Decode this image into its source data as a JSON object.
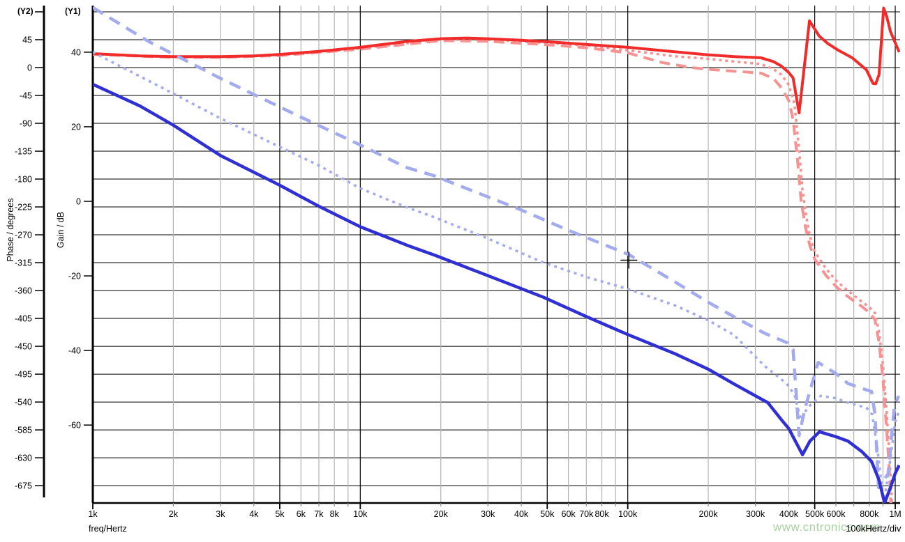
{
  "page": {
    "watermark": "www.cntronics.com",
    "scale_note": "100kHertz/div"
  },
  "chart_data": {
    "type": "line",
    "title": "",
    "x_axis": {
      "label": "freq/Hertz",
      "scale": "log",
      "xlim": [
        1000,
        1040000
      ],
      "ticks": [
        {
          "f": 1000,
          "label": "1k",
          "major": true
        },
        {
          "f": 2000,
          "label": "2k",
          "major": false
        },
        {
          "f": 3000,
          "label": "3k",
          "major": false
        },
        {
          "f": 4000,
          "label": "4k",
          "major": false
        },
        {
          "f": 5000,
          "label": "5k",
          "major": true
        },
        {
          "f": 6000,
          "label": "6k",
          "major": false
        },
        {
          "f": 7000,
          "label": "7k",
          "major": false
        },
        {
          "f": 8000,
          "label": "8k",
          "major": false
        },
        {
          "f": 9000,
          "label": "",
          "major": false
        },
        {
          "f": 10000,
          "label": "10k",
          "major": true
        },
        {
          "f": 20000,
          "label": "20k",
          "major": false
        },
        {
          "f": 30000,
          "label": "30k",
          "major": false
        },
        {
          "f": 40000,
          "label": "40k",
          "major": false
        },
        {
          "f": 50000,
          "label": "50k",
          "major": true
        },
        {
          "f": 60000,
          "label": "60k",
          "major": false
        },
        {
          "f": 70000,
          "label": "70k",
          "major": false
        },
        {
          "f": 80000,
          "label": "80k",
          "major": false
        },
        {
          "f": 90000,
          "label": "",
          "major": false
        },
        {
          "f": 100000,
          "label": "100k",
          "major": true
        },
        {
          "f": 200000,
          "label": "200k",
          "major": false
        },
        {
          "f": 300000,
          "label": "300k",
          "major": false
        },
        {
          "f": 400000,
          "label": "400k",
          "major": false
        },
        {
          "f": 500000,
          "label": "500k",
          "major": true
        },
        {
          "f": 600000,
          "label": "600k",
          "major": false
        },
        {
          "f": 700000,
          "label": "",
          "major": false
        },
        {
          "f": 800000,
          "label": "800k",
          "major": false
        },
        {
          "f": 900000,
          "label": "",
          "major": false
        },
        {
          "f": 1000000,
          "label": "1M",
          "major": true
        }
      ]
    },
    "y1_axis": {
      "name": "(Y1)",
      "label": "Gain / dB",
      "ylim": [
        -80.9,
        52.5
      ],
      "ticks": [
        {
          "v": 40,
          "label": "40"
        },
        {
          "v": 20,
          "label": "20"
        },
        {
          "v": 0,
          "label": "0"
        },
        {
          "v": -20,
          "label": "-20"
        },
        {
          "v": -40,
          "label": "-40"
        },
        {
          "v": -60,
          "label": "-60"
        }
      ]
    },
    "y2_axis": {
      "name": "(Y2)",
      "label": "Phase / degrees",
      "ylim": [
        -703,
        100.1
      ],
      "ticks": [
        {
          "v": 90,
          "label": ""
        },
        {
          "v": 45,
          "label": "45"
        },
        {
          "v": 0,
          "label": "0"
        },
        {
          "v": -45,
          "label": "-45"
        },
        {
          "v": -90,
          "label": "-90"
        },
        {
          "v": -135,
          "label": "-135"
        },
        {
          "v": -180,
          "label": "-180"
        },
        {
          "v": -225,
          "label": "-225"
        },
        {
          "v": -270,
          "label": "-270"
        },
        {
          "v": -315,
          "label": "-315"
        },
        {
          "v": -360,
          "label": "-360"
        },
        {
          "v": -405,
          "label": "-405"
        },
        {
          "v": -450,
          "label": "-450"
        },
        {
          "v": -495,
          "label": "-495"
        },
        {
          "v": -540,
          "label": "-540"
        },
        {
          "v": -585,
          "label": "-585"
        },
        {
          "v": -630,
          "label": "-630"
        },
        {
          "v": -675,
          "label": "-675"
        }
      ]
    },
    "grid": {
      "h_line_color": "#000000",
      "v_major_color": "#000000",
      "v_minor_color": "#b3b3b3"
    },
    "series": [
      {
        "id": "gain-dashed",
        "axis": "y1",
        "color": "#f79292",
        "width": 4,
        "dash": "15 9",
        "points": [
          [
            1000,
            39.4
          ],
          [
            2000,
            38.6
          ],
          [
            3000,
            38.6
          ],
          [
            5000,
            39.1
          ],
          [
            10000,
            40.8
          ],
          [
            20000,
            43.1
          ],
          [
            30000,
            42.9
          ],
          [
            50000,
            42.0
          ],
          [
            70000,
            41.2
          ],
          [
            100000,
            39.8
          ],
          [
            135000,
            37.2
          ],
          [
            172000,
            35.9
          ],
          [
            200000,
            35.4
          ],
          [
            250000,
            34.9
          ],
          [
            314000,
            34.4
          ],
          [
            350000,
            33.0
          ],
          [
            375000,
            30.5
          ],
          [
            400000,
            27.0
          ],
          [
            415000,
            22.0
          ],
          [
            430000,
            12.0
          ],
          [
            445000,
            0.0
          ],
          [
            462000,
            -7.0
          ],
          [
            480000,
            -12.0
          ],
          [
            500000,
            -15.5
          ],
          [
            550000,
            -19.8
          ],
          [
            600000,
            -22.8
          ],
          [
            650000,
            -25.0
          ],
          [
            700000,
            -26.7
          ],
          [
            750000,
            -28.2
          ],
          [
            800000,
            -29.8
          ],
          [
            840000,
            -31.8
          ],
          [
            868000,
            -37.5
          ],
          [
            898000,
            -47.0
          ],
          [
            928000,
            -61.0
          ],
          [
            950000,
            -72.0
          ],
          [
            962000,
            -81.0
          ]
        ]
      },
      {
        "id": "gain-dotted",
        "axis": "y1",
        "color": "#f79292",
        "width": 3.5,
        "dash": "4 5",
        "points": [
          [
            1000,
            39.5
          ],
          [
            2000,
            38.7
          ],
          [
            3000,
            38.7
          ],
          [
            5000,
            39.2
          ],
          [
            10000,
            41.0
          ],
          [
            20000,
            43.4
          ],
          [
            30000,
            43.3
          ],
          [
            50000,
            42.5
          ],
          [
            70000,
            41.8
          ],
          [
            100000,
            40.5
          ],
          [
            150000,
            38.9
          ],
          [
            200000,
            38.2
          ],
          [
            250000,
            37.5
          ],
          [
            314000,
            36.8
          ],
          [
            350000,
            35.5
          ],
          [
            375000,
            34.0
          ],
          [
            400000,
            31.2
          ],
          [
            420000,
            26.0
          ],
          [
            437000,
            14.0
          ],
          [
            450000,
            3.0
          ],
          [
            465000,
            -4.0
          ],
          [
            480000,
            -9.5
          ],
          [
            500000,
            -13.5
          ],
          [
            550000,
            -18.0
          ],
          [
            600000,
            -21.2
          ],
          [
            650000,
            -23.4
          ],
          [
            700000,
            -25.2
          ],
          [
            750000,
            -26.9
          ],
          [
            800000,
            -28.4
          ],
          [
            840000,
            -30.0
          ],
          [
            870000,
            -35.0
          ],
          [
            900000,
            -44.0
          ],
          [
            930000,
            -57.0
          ],
          [
            955000,
            -70.0
          ],
          [
            972000,
            -81.0
          ]
        ]
      },
      {
        "id": "gain-solid",
        "axis": "y1",
        "color": "#f12a2a",
        "width": 4,
        "dash": "",
        "points": [
          [
            1000,
            39.6
          ],
          [
            1500,
            39.0
          ],
          [
            2000,
            38.8
          ],
          [
            3000,
            38.8
          ],
          [
            4000,
            39.0
          ],
          [
            5000,
            39.4
          ],
          [
            7000,
            40.2
          ],
          [
            10000,
            41.3
          ],
          [
            15000,
            42.9
          ],
          [
            20000,
            43.6
          ],
          [
            25000,
            43.8
          ],
          [
            30000,
            43.6
          ],
          [
            40000,
            43.2
          ],
          [
            50000,
            42.8
          ],
          [
            70000,
            42.1
          ],
          [
            100000,
            41.3
          ],
          [
            140000,
            40.3
          ],
          [
            200000,
            39.3
          ],
          [
            250000,
            38.8
          ],
          [
            314000,
            38.5
          ],
          [
            350000,
            37.5
          ],
          [
            375000,
            36.3
          ],
          [
            400000,
            34.5
          ],
          [
            415000,
            33.1
          ],
          [
            437000,
            23.7
          ],
          [
            478000,
            48.4
          ],
          [
            500000,
            46.2
          ],
          [
            520000,
            44.3
          ],
          [
            560000,
            42.3
          ],
          [
            610000,
            40.6
          ],
          [
            690000,
            38.5
          ],
          [
            780000,
            35.3
          ],
          [
            826000,
            31.6
          ],
          [
            845000,
            31.5
          ],
          [
            870000,
            34.0
          ],
          [
            905000,
            51.8
          ],
          [
            930000,
            49.5
          ],
          [
            960000,
            45.5
          ],
          [
            1000000,
            42.5
          ],
          [
            1035000,
            40.0
          ]
        ]
      },
      {
        "id": "phase-dashed",
        "axis": "y2",
        "color": "#a3aaee",
        "width": 4.5,
        "dash": "17 11",
        "points": [
          [
            1000,
            97
          ],
          [
            1620,
            42
          ],
          [
            3020,
            -18
          ],
          [
            6000,
            -80
          ],
          [
            10000,
            -125
          ],
          [
            14800,
            -161
          ],
          [
            18700,
            -174
          ],
          [
            39000,
            -228
          ],
          [
            61000,
            -264
          ],
          [
            101000,
            -302
          ],
          [
            150000,
            -346
          ],
          [
            200000,
            -379
          ],
          [
            256000,
            -405
          ],
          [
            325000,
            -429
          ],
          [
            393000,
            -444
          ],
          [
            415000,
            -455
          ],
          [
            437000,
            -594
          ],
          [
            460000,
            -550
          ],
          [
            515000,
            -476
          ],
          [
            560000,
            -486
          ],
          [
            600000,
            -494
          ],
          [
            665000,
            -510
          ],
          [
            750000,
            -518
          ],
          [
            816000,
            -523
          ],
          [
            840000,
            -560
          ],
          [
            866000,
            -678
          ],
          [
            940000,
            -656
          ],
          [
            993000,
            -547
          ],
          [
            1030000,
            -530
          ]
        ]
      },
      {
        "id": "phase-dotted",
        "axis": "y2",
        "color": "#a3aaee",
        "width": 3.5,
        "dash": "4 6",
        "points": [
          [
            1000,
            25
          ],
          [
            2000,
            -42
          ],
          [
            3000,
            -82
          ],
          [
            5000,
            -128
          ],
          [
            7000,
            -158
          ],
          [
            10000,
            -195
          ],
          [
            15000,
            -226
          ],
          [
            19000,
            -242
          ],
          [
            30000,
            -276
          ],
          [
            48500,
            -315
          ],
          [
            70000,
            -338
          ],
          [
            101000,
            -358
          ],
          [
            150000,
            -384
          ],
          [
            200000,
            -408
          ],
          [
            250000,
            -432
          ],
          [
            325000,
            -482
          ],
          [
            392000,
            -510
          ],
          [
            420000,
            -528
          ],
          [
            444000,
            -569
          ],
          [
            470000,
            -549
          ],
          [
            527000,
            -530
          ],
          [
            600000,
            -534
          ],
          [
            665000,
            -541
          ],
          [
            780000,
            -549
          ],
          [
            820000,
            -560
          ],
          [
            860000,
            -619
          ],
          [
            905000,
            -704
          ],
          [
            950000,
            -645
          ],
          [
            1000000,
            -572
          ],
          [
            1030000,
            -556
          ]
        ]
      },
      {
        "id": "phase-solid",
        "axis": "y2",
        "color": "#2f2fd3",
        "width": 4.5,
        "dash": "",
        "points": [
          [
            1000,
            -27
          ],
          [
            1500,
            -62
          ],
          [
            2000,
            -93
          ],
          [
            3000,
            -142
          ],
          [
            5000,
            -190
          ],
          [
            7000,
            -224
          ],
          [
            10000,
            -257
          ],
          [
            15000,
            -287
          ],
          [
            19000,
            -303
          ],
          [
            30000,
            -336
          ],
          [
            48500,
            -371
          ],
          [
            70000,
            -402
          ],
          [
            100000,
            -431
          ],
          [
            150000,
            -462
          ],
          [
            200000,
            -487
          ],
          [
            250000,
            -511
          ],
          [
            334000,
            -541
          ],
          [
            376000,
            -569
          ],
          [
            400000,
            -583
          ],
          [
            450000,
            -625
          ],
          [
            480000,
            -603
          ],
          [
            521000,
            -588
          ],
          [
            600000,
            -596
          ],
          [
            665000,
            -603
          ],
          [
            750000,
            -620
          ],
          [
            816000,
            -636
          ],
          [
            870000,
            -666
          ],
          [
            912000,
            -703
          ],
          [
            960000,
            -678
          ],
          [
            1000000,
            -655
          ],
          [
            1035000,
            -642
          ]
        ]
      }
    ],
    "cursor": {
      "freq_hz": 101000,
      "gain_db": -15.7,
      "phase_deg": -311
    }
  }
}
